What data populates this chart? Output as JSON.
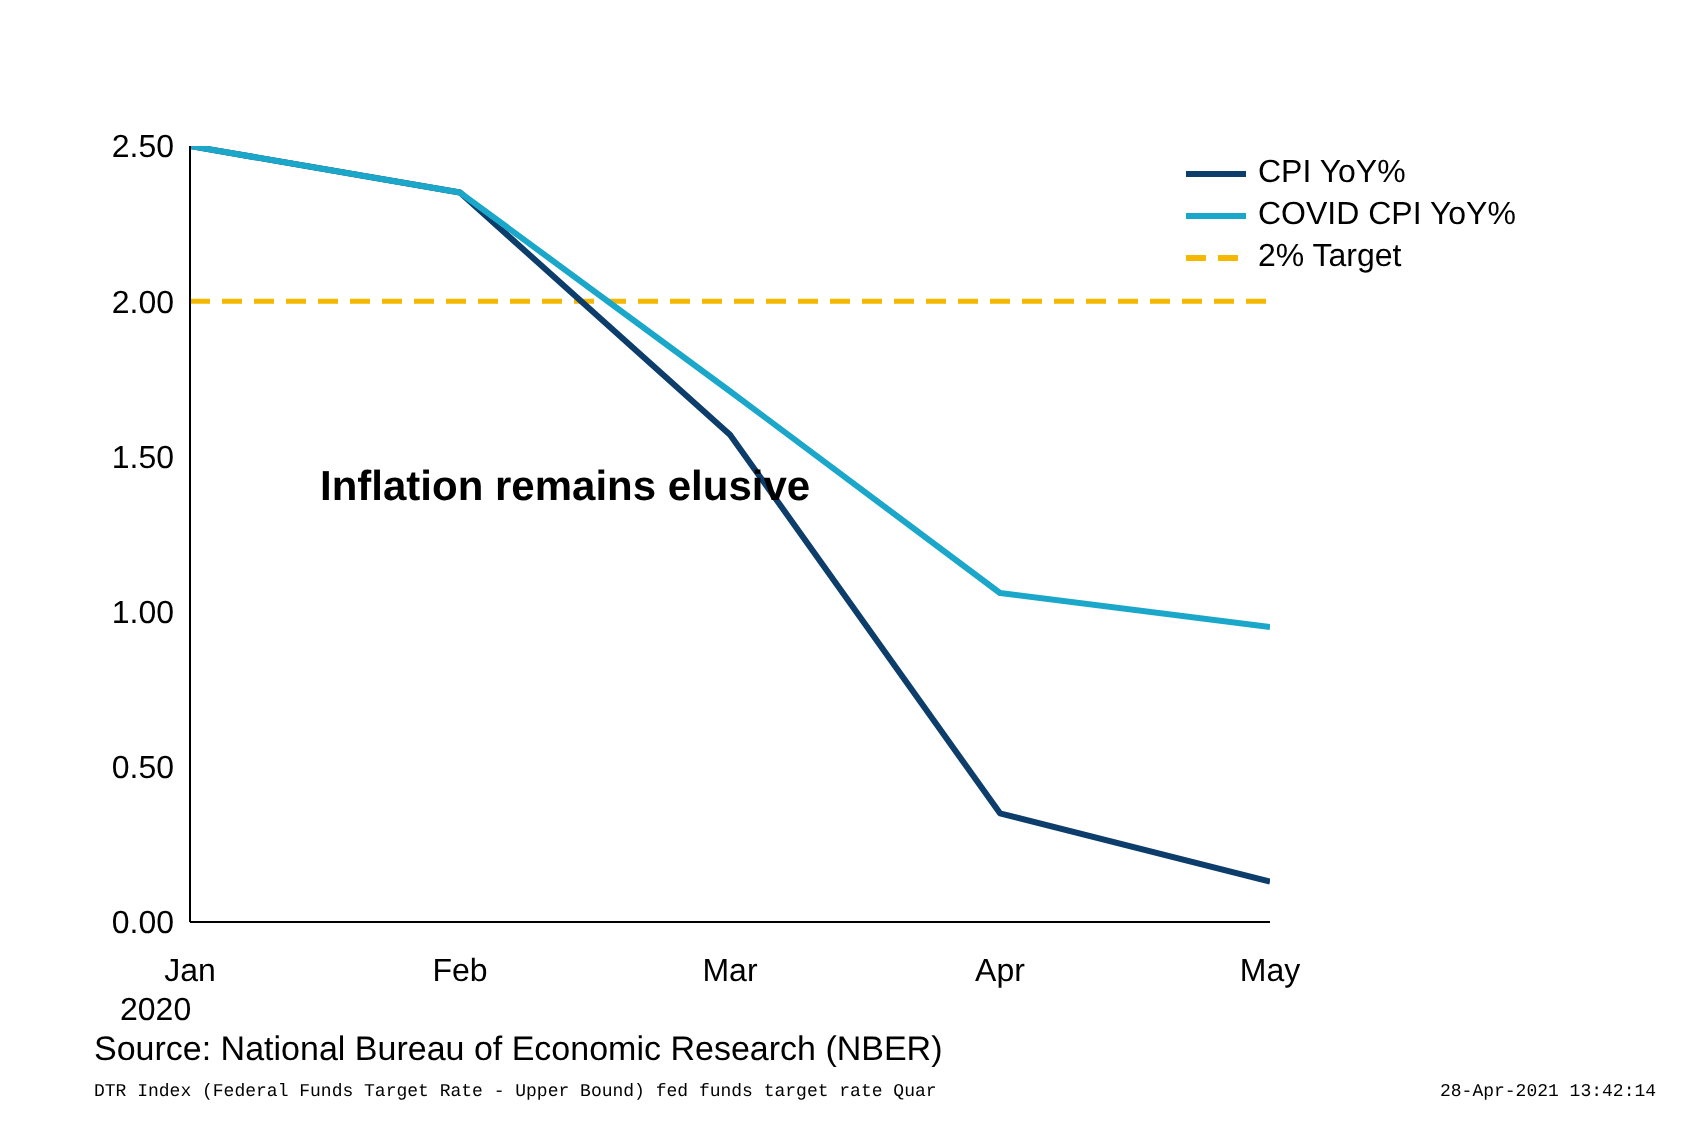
{
  "chart_data": {
    "type": "line",
    "categories": [
      "Jan",
      "Feb",
      "Mar",
      "Apr",
      "May"
    ],
    "series": [
      {
        "name": "CPI YoY%",
        "color": "#0d3d6b",
        "values": [
          2.5,
          2.35,
          1.57,
          0.35,
          0.13
        ]
      },
      {
        "name": "COVID CPI YoY%",
        "color": "#1aa7c9",
        "values": [
          2.5,
          2.35,
          1.71,
          1.06,
          0.95
        ]
      }
    ],
    "ref_lines": [
      {
        "axis": "y",
        "value": 2,
        "label": "2% Target",
        "color": "#f5b800",
        "line_style": "dashed"
      }
    ],
    "ylim": [
      0,
      2.5
    ],
    "yticks": [
      {
        "value": 0,
        "label": "0.00"
      },
      {
        "value": 0.5,
        "label": "0.50"
      },
      {
        "value": 1,
        "label": "1.00"
      },
      {
        "value": 1.5,
        "label": "1.50"
      },
      {
        "value": 2,
        "label": "2.00"
      },
      {
        "value": 2.5,
        "label": "2.50"
      }
    ],
    "grid": false,
    "legend": "top right",
    "marker": "none",
    "line_style": "solid",
    "annotations": [
      "Inflation remains elusive",
      "2020",
      "Source: National Bureau of Economic Research (NBER)",
      "DTR Index (Federal Funds Target Rate - Upper Bound) fed funds target rate  Quar",
      "28-Apr-2021 13:42:14"
    ]
  }
}
